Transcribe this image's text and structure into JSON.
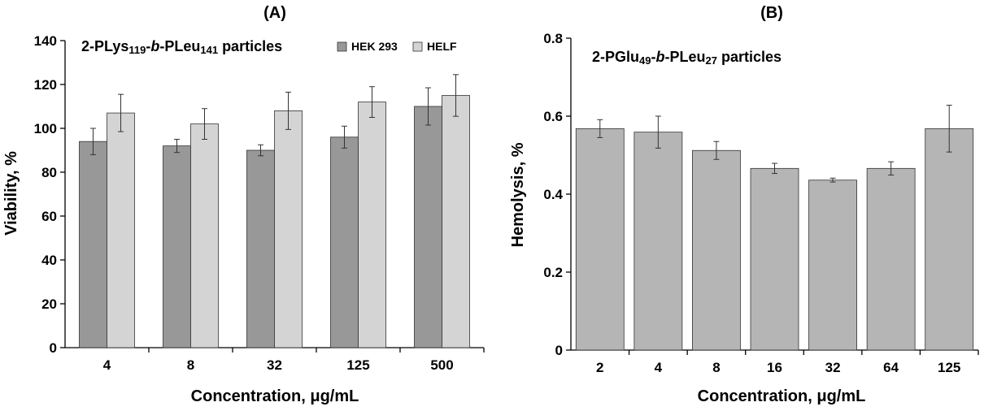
{
  "chart_data": [
    {
      "type": "bar",
      "panel_label": "(A)",
      "title": "2-PLys",
      "title_parts": [
        {
          "text": "2-PLys",
          "style": "normal"
        },
        {
          "text": "119",
          "style": "sub"
        },
        {
          "text": "-",
          "style": "normal"
        },
        {
          "text": "b",
          "style": "italic"
        },
        {
          "text": "-PLeu",
          "style": "normal"
        },
        {
          "text": "141",
          "style": "sub"
        },
        {
          "text": " particles",
          "style": "normal"
        }
      ],
      "xlabel": "Concentration, μg/mL",
      "ylabel": "Viability, %",
      "ylim": [
        0,
        140
      ],
      "yticks": [
        "0",
        "20",
        "40",
        "60",
        "80",
        "100",
        "120",
        "140"
      ],
      "categories": [
        "4",
        "8",
        "32",
        "125",
        "500"
      ],
      "legend_position": "top-right",
      "series": [
        {
          "name": "HEK 293",
          "color": "#989898",
          "values": [
            94,
            92,
            90,
            96,
            110
          ],
          "errors": [
            6,
            3,
            2.5,
            5,
            8.5
          ]
        },
        {
          "name": "HELF",
          "color": "#d4d4d4",
          "values": [
            107,
            102,
            108,
            112,
            115
          ],
          "errors": [
            8.5,
            7,
            8.5,
            7,
            9.5
          ]
        }
      ]
    },
    {
      "type": "bar",
      "panel_label": "(B)",
      "title": "2-PGlu",
      "title_parts": [
        {
          "text": "2-PGlu",
          "style": "normal"
        },
        {
          "text": "49",
          "style": "sub"
        },
        {
          "text": "-",
          "style": "normal"
        },
        {
          "text": "b",
          "style": "italic"
        },
        {
          "text": "-PLeu",
          "style": "normal"
        },
        {
          "text": "27",
          "style": "sub"
        },
        {
          "text": " particles",
          "style": "normal"
        }
      ],
      "xlabel": "Concentration, μg/mL",
      "ylabel": "Hemolysis, %",
      "ylim": [
        0,
        0.8
      ],
      "yticks": [
        "0",
        "0.2",
        "0.4",
        "0.6",
        "0.8"
      ],
      "categories": [
        "2",
        "4",
        "8",
        "16",
        "32",
        "64",
        "125"
      ],
      "series": [
        {
          "name": "",
          "color": "#b5b5b5",
          "values": [
            0.568,
            0.559,
            0.512,
            0.466,
            0.436,
            0.466,
            0.568
          ],
          "errors": [
            0.023,
            0.041,
            0.023,
            0.013,
            0.005,
            0.017,
            0.06
          ]
        }
      ]
    }
  ]
}
